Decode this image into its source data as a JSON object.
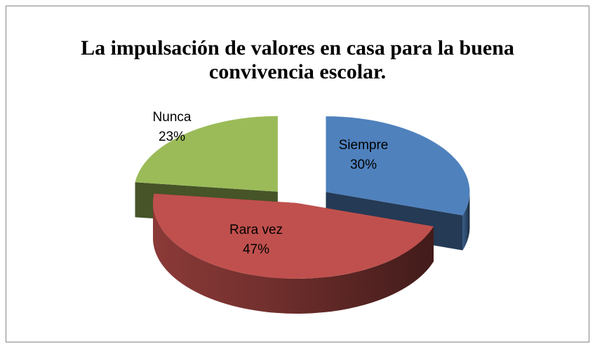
{
  "chart_data": {
    "type": "pie3d",
    "title": "La impulsación de valores en casa para la buena convivencia escolar.",
    "categories": [
      "Siempre",
      "Rara vez",
      "Nunca"
    ],
    "values": [
      30,
      47,
      23
    ],
    "value_labels": [
      "30%",
      "47%",
      "23%"
    ],
    "colors": [
      "#4f81bd",
      "#c0504d",
      "#9bbb59"
    ]
  }
}
